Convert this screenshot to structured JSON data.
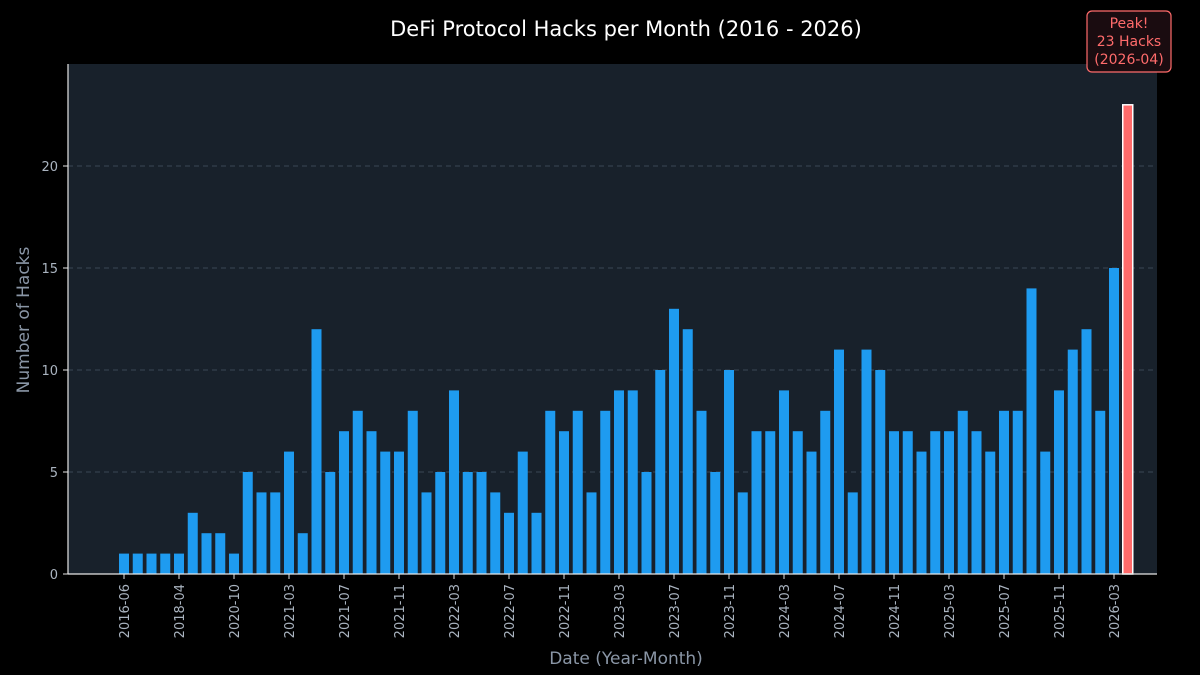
{
  "chart_data": {
    "type": "bar",
    "title": "DeFi Protocol Hacks per Month (2016 - 2026)",
    "xlabel": "Date (Year-Month)",
    "ylabel": "Number of Hacks",
    "ylim": [
      0,
      25
    ],
    "yticks": [
      0,
      5,
      10,
      15,
      20
    ],
    "grid": "horizontal dashed",
    "x_tick_labels": [
      "2016-06",
      "2018-04",
      "2020-10",
      "2021-03",
      "2021-07",
      "2021-11",
      "2022-03",
      "2022-07",
      "2022-11",
      "2023-03",
      "2023-07",
      "2023-11",
      "2024-03",
      "2024-07",
      "2024-11",
      "2025-03",
      "2025-07",
      "2025-11",
      "2026-03"
    ],
    "x_tick_positions": [
      0,
      4,
      8,
      12,
      16,
      20,
      24,
      28,
      32,
      36,
      40,
      44,
      48,
      52,
      56,
      60,
      64,
      68,
      72
    ],
    "values": [
      1,
      1,
      1,
      1,
      1,
      3,
      2,
      2,
      1,
      5,
      4,
      4,
      6,
      2,
      12,
      5,
      7,
      8,
      7,
      6,
      6,
      8,
      4,
      5,
      9,
      5,
      5,
      4,
      3,
      6,
      3,
      8,
      7,
      8,
      4,
      8,
      9,
      9,
      5,
      10,
      13,
      12,
      8,
      5,
      10,
      4,
      7,
      7,
      9,
      7,
      6,
      8,
      11,
      4,
      11,
      10,
      7,
      7,
      6,
      7,
      7,
      8,
      7,
      6,
      8,
      8,
      14,
      6,
      9,
      11,
      12,
      8,
      15,
      23
    ],
    "bar_color": "#1e9bf0",
    "peak_color": "#ff6b6b",
    "peak_index": 73,
    "annotation": {
      "line1": "Peak!",
      "line2": "23 Hacks",
      "line3": "(2026-04)"
    }
  }
}
